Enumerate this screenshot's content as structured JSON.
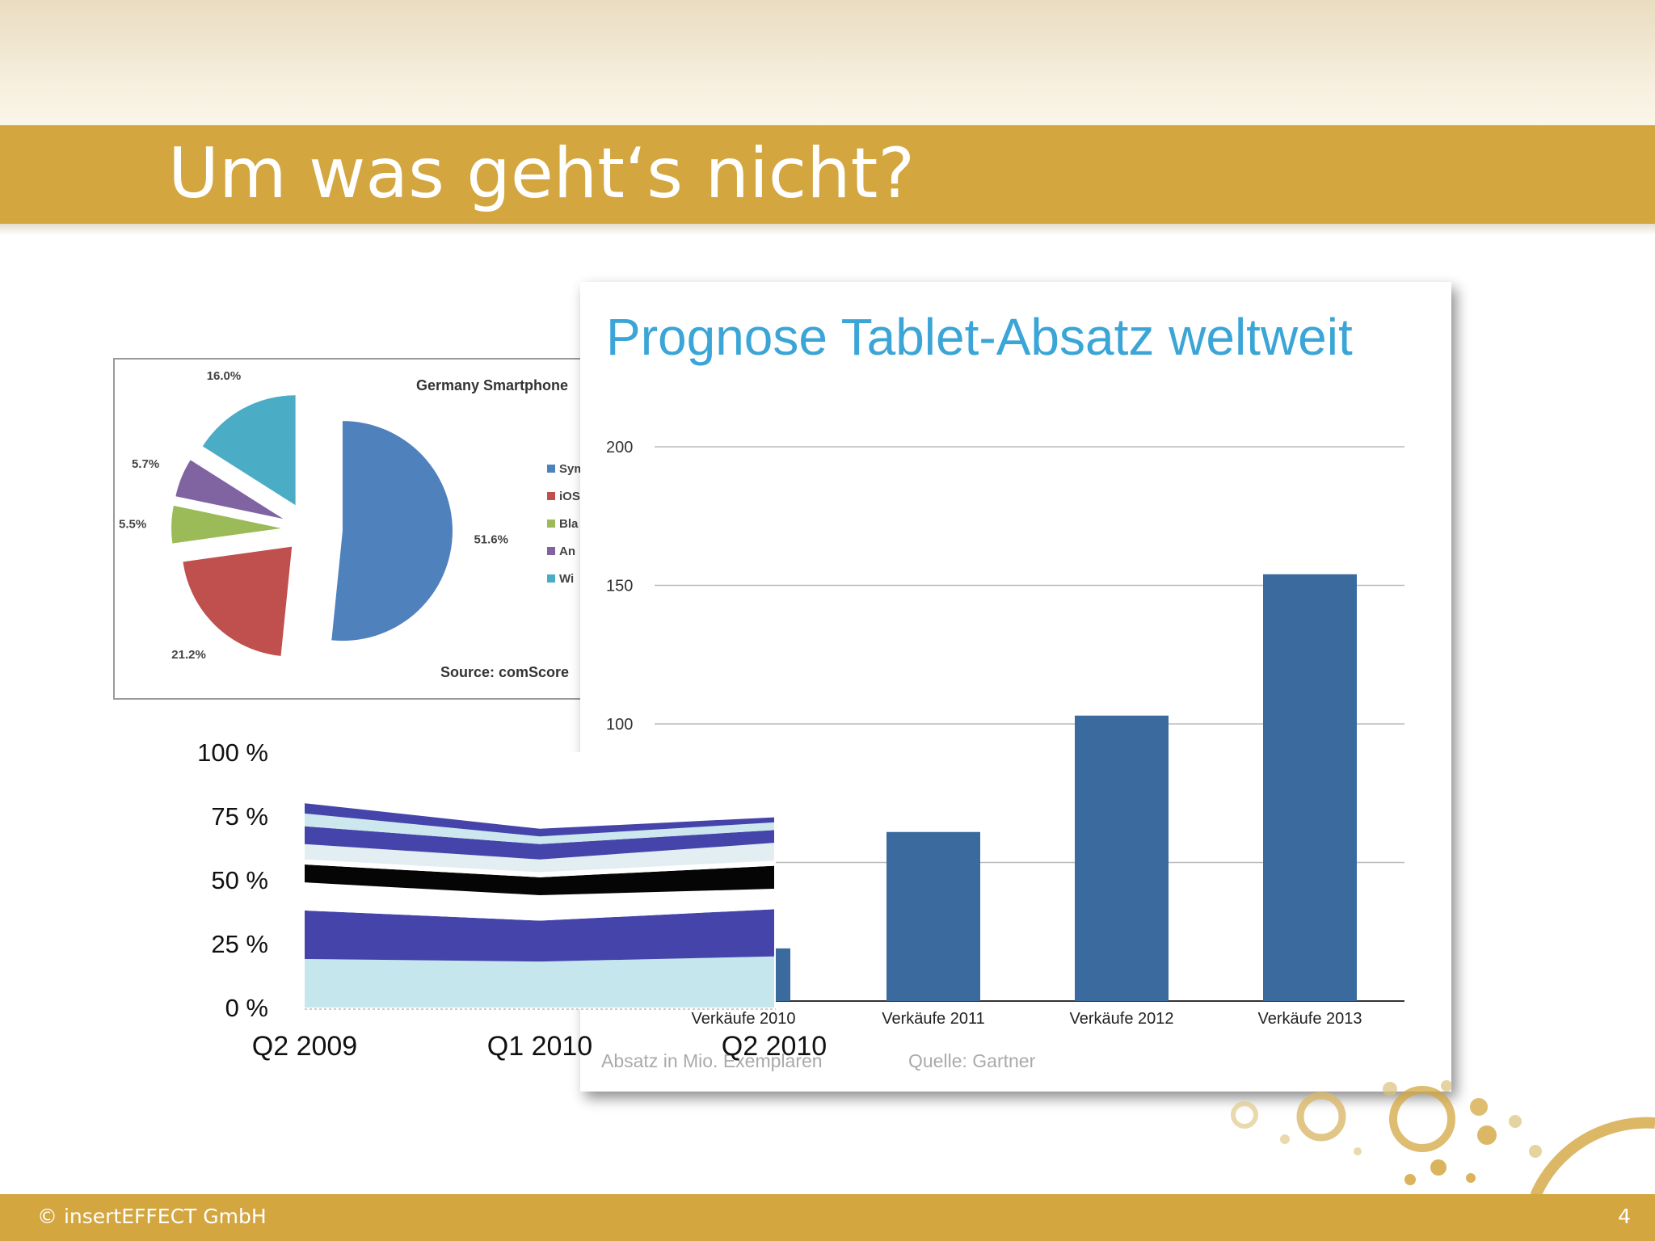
{
  "slide": {
    "title": "Um was geht‘s nicht?",
    "footer_left": "© insertEFFECT GmbH",
    "page_number": "4"
  },
  "colors": {
    "gold": "#d3a640",
    "bar_blue": "#3a6a9e",
    "title_blue": "#3aa5d6"
  },
  "chart_data": [
    {
      "type": "pie",
      "title": "Germany Smartphone",
      "source": "Source: comScore",
      "labels": [
        "Sym",
        "iOS",
        "Bla",
        "An",
        "Wi"
      ],
      "values": [
        51.6,
        21.2,
        5.5,
        5.7,
        16.0
      ],
      "value_labels": [
        "51.6%",
        "21.2%",
        "5.5%",
        "5.7%",
        "16.0%"
      ],
      "colors": [
        "#4f81bd",
        "#c0504d",
        "#9bbb59",
        "#8064a2",
        "#4bacc6"
      ],
      "legend": "right"
    },
    {
      "type": "bar",
      "title": "Prognose Tablet-Absatz weltweit",
      "categories": [
        "Verkäufe 2010",
        "Verkäufe 2011",
        "Verkäufe 2012",
        "Verkäufe 2013"
      ],
      "values": [
        19,
        61,
        103,
        154
      ],
      "ylim": [
        0,
        200
      ],
      "yticks": [
        "100",
        "150",
        "200"
      ],
      "note": "Absatz in Mio. Exemplaren",
      "source": "Quelle: Gartner",
      "grid": true
    },
    {
      "type": "area",
      "x": [
        "Q2 2009",
        "Q1 2010",
        "Q2 2010"
      ],
      "yticks": [
        "0 %",
        "25 %",
        "50 %",
        "75 %",
        "100 %"
      ],
      "ylim": [
        0,
        100
      ],
      "series": [
        {
          "color": "#c5e6ec",
          "values": [
            19,
            18,
            20
          ]
        },
        {
          "color": "#4444aa",
          "values": [
            19,
            16,
            18.5
          ]
        },
        {
          "color": "#ffffff",
          "values": [
            11,
            10,
            8
          ]
        },
        {
          "color": "#050505",
          "values": [
            7,
            7,
            9
          ]
        },
        {
          "color": "#ffffff",
          "values": [
            2,
            2,
            2
          ]
        },
        {
          "color": "#e2eef2",
          "values": [
            6,
            5,
            7
          ]
        },
        {
          "color": "#4444aa",
          "values": [
            7,
            6,
            5
          ]
        },
        {
          "color": "#cce8ee",
          "values": [
            5,
            3,
            3
          ]
        },
        {
          "color": "#4444aa",
          "values": [
            4,
            3,
            2
          ]
        }
      ]
    }
  ]
}
